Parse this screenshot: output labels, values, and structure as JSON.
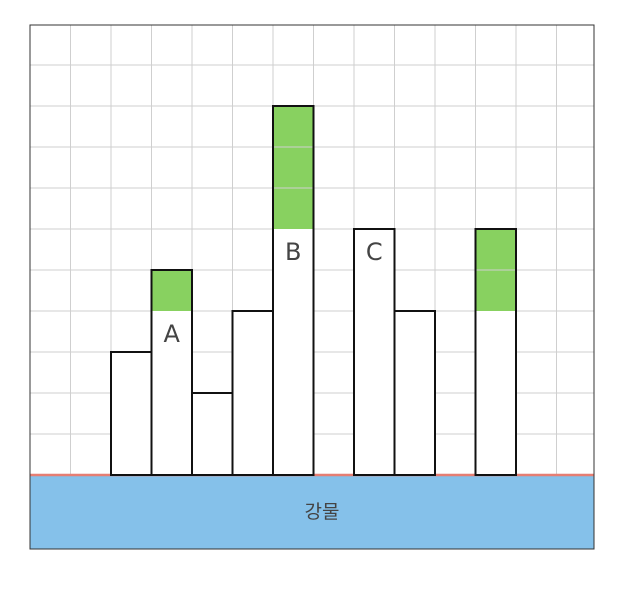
{
  "water_label": "강물",
  "colors": {
    "grid_line": "#cfcfcf",
    "frame": "#333333",
    "water": "#85c1ea",
    "shoreline": "#e67e73",
    "building_fill": "#ffffff",
    "building_stroke": "#111111",
    "highlight": "#88d160",
    "label": "#444444"
  },
  "grid": {
    "columns": 14,
    "rows": 11
  },
  "buildings": [
    {
      "column": 2,
      "floors": 3,
      "highlighted_floors": 0,
      "label": ""
    },
    {
      "column": 3,
      "floors": 5,
      "highlighted_floors": 1,
      "label": "A"
    },
    {
      "column": 4,
      "floors": 2,
      "highlighted_floors": 0,
      "label": ""
    },
    {
      "column": 5,
      "floors": 4,
      "highlighted_floors": 0,
      "label": ""
    },
    {
      "column": 6,
      "floors": 9,
      "highlighted_floors": 3,
      "label": "B"
    },
    {
      "column": 8,
      "floors": 6,
      "highlighted_floors": 0,
      "label": "C"
    },
    {
      "column": 9,
      "floors": 4,
      "highlighted_floors": 0,
      "label": ""
    },
    {
      "column": 11,
      "floors": 6,
      "highlighted_floors": 2,
      "label": ""
    }
  ]
}
